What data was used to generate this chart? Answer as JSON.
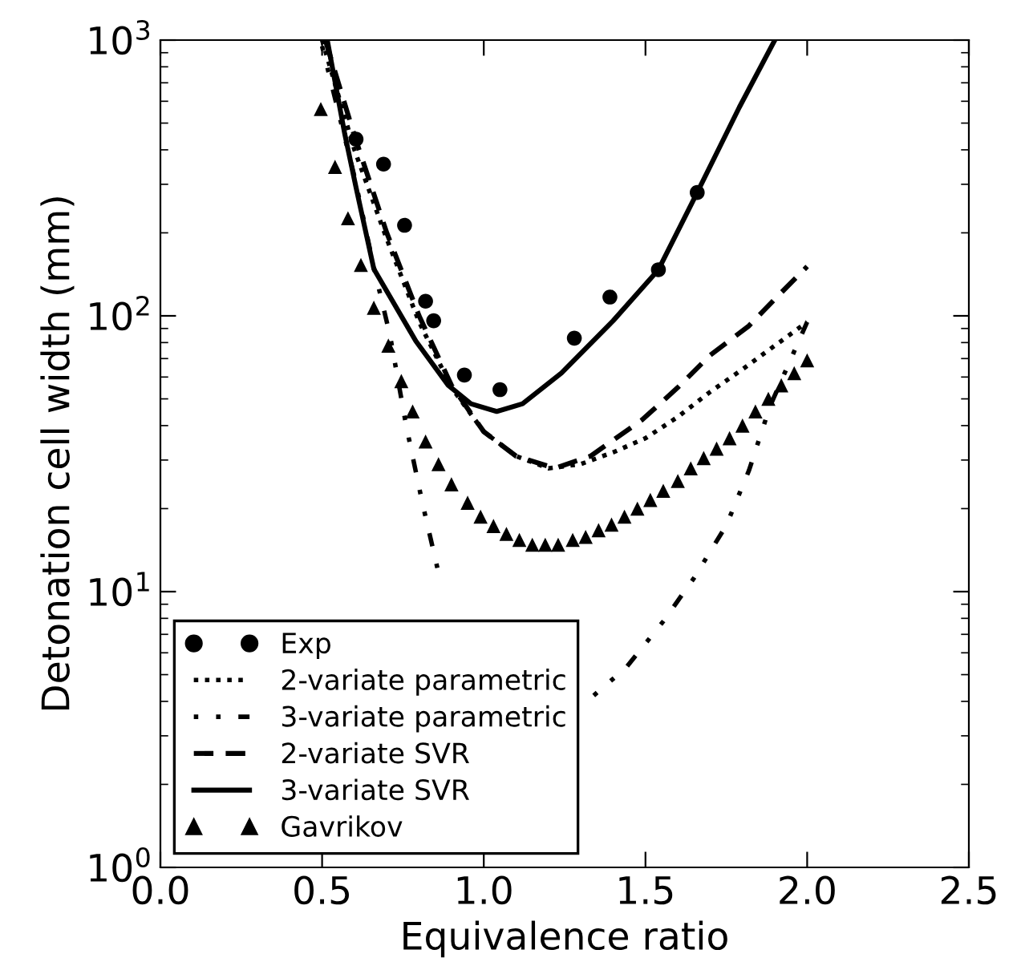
{
  "chart_data": {
    "type": "line",
    "xlabel": "Equivalence ratio",
    "ylabel": "Detonation cell width (mm)",
    "log": "y",
    "xlim": [
      0.0,
      2.5
    ],
    "xticks": [
      {
        "value": 0.0,
        "label": "0.0"
      },
      0.5,
      {
        "value": 1.0,
        "label": "1.0"
      },
      1.5,
      {
        "value": 2.0,
        "label": "2.0"
      },
      2.5
    ],
    "ylim": [
      1,
      1000
    ],
    "yticks": [
      {
        "value": 1,
        "label": "10$^{0}$"
      },
      {
        "value": 10,
        "label": "10$^{1}$"
      },
      {
        "value": 100,
        "label": "10$^{2}$"
      },
      {
        "value": 1000,
        "label": "10$^{3}$"
      }
    ],
    "grid": false,
    "legend": "bottom left",
    "series": [
      {
        "name": "Exp",
        "type": "scatter",
        "marker": "circle",
        "color": "#000000",
        "x": [
          0.605,
          0.69,
          0.755,
          0.82,
          0.845,
          0.94,
          1.05,
          1.28,
          1.39,
          1.54,
          1.66
        ],
        "values": [
          437,
          355,
          213,
          113,
          96,
          61,
          54,
          83,
          117,
          147,
          280
        ]
      },
      {
        "name": "2-variate parametric",
        "line_style": "dotted",
        "color": "#000000",
        "x": [
          0.5,
          0.6,
          0.7,
          0.8,
          0.9,
          1.0,
          1.1,
          1.2,
          1.3,
          1.4,
          1.5,
          1.6,
          1.7,
          1.8,
          1.9,
          2.0
        ],
        "values": [
          1000,
          400,
          190,
          95,
          55,
          38,
          31,
          28,
          29,
          32,
          36,
          43,
          53,
          64,
          78,
          95
        ]
      },
      {
        "name": "3-variate parametric",
        "line_style": "dashdotdot",
        "color": "#000000",
        "x": [
          0.5,
          0.6,
          0.66,
          0.71,
          0.76,
          0.81,
          0.86,
          1.1,
          1.34,
          1.44,
          1.555,
          1.65,
          1.75,
          1.82,
          1.885,
          2.0
        ],
        "values": [
          950,
          320,
          150,
          85,
          40,
          21,
          11.7,
          null,
          4.2,
          5.3,
          7.8,
          11.2,
          17.4,
          27.5,
          47,
          95
        ]
      },
      {
        "name": "2-variate SVR",
        "line_style": "dashed",
        "color": "#000000",
        "x": [
          0.51,
          0.6,
          0.7,
          0.8,
          0.9,
          1.0,
          1.1,
          1.22,
          1.33,
          1.49,
          1.6,
          1.7,
          1.82,
          1.9,
          2.0
        ],
        "values": [
          1000,
          450,
          200,
          100,
          56,
          38,
          31,
          28,
          31,
          42,
          55,
          72,
          92,
          115,
          151
        ]
      },
      {
        "name": "3-variate SVR",
        "line_style": "solid",
        "color": "#000000",
        "x": [
          0.516,
          0.57,
          0.605,
          0.66,
          0.79,
          0.89,
          0.96,
          1.04,
          1.12,
          1.24,
          1.4,
          1.54,
          1.66,
          1.79,
          1.9
        ],
        "values": [
          1000,
          457,
          292,
          148,
          81,
          56,
          48,
          45,
          48,
          62,
          96,
          147,
          280,
          570,
          1000
        ]
      },
      {
        "name": "Gavrikov",
        "type": "scatter",
        "marker": "triangle",
        "color": "#000000",
        "x": [
          0.496,
          0.54,
          0.58,
          0.62,
          0.66,
          0.705,
          0.745,
          0.78,
          0.82,
          0.86,
          0.9,
          0.95,
          0.99,
          1.03,
          1.07,
          1.11,
          1.15,
          1.19,
          1.23,
          1.275,
          1.315,
          1.355,
          1.395,
          1.435,
          1.475,
          1.515,
          1.555,
          1.6,
          1.64,
          1.68,
          1.72,
          1.76,
          1.8,
          1.84,
          1.88,
          1.92,
          1.96,
          2.0
        ],
        "values": [
          562,
          347,
          226,
          153,
          107,
          78,
          58,
          45,
          35,
          29,
          24.5,
          21,
          18.7,
          17.3,
          16.2,
          15.4,
          14.8,
          14.8,
          14.8,
          15.4,
          15.8,
          16.7,
          17.5,
          18.7,
          20,
          21.5,
          23.2,
          25.2,
          28,
          30.5,
          33,
          36,
          40,
          45,
          50,
          56,
          62,
          69
        ]
      }
    ]
  }
}
